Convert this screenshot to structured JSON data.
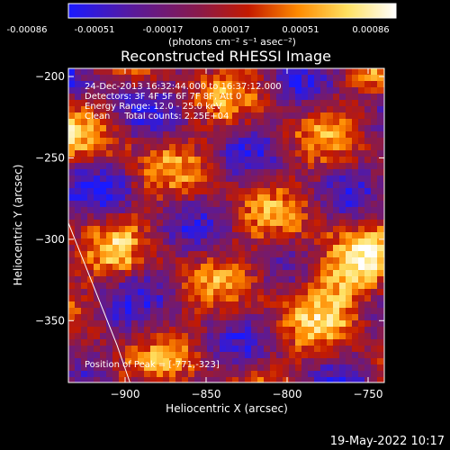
{
  "colorbar": {
    "ticks": [
      "-0.00086",
      "-0.00051",
      "-0.00017",
      "0.00017",
      "0.00051",
      "0.00086"
    ],
    "units_label": "(photons cm⁻² s⁻¹ asec⁻²)",
    "colors": [
      "#1a1aff",
      "#5a1a9a",
      "#8a1a4a",
      "#c41a00",
      "#ff8a00",
      "#ffe060",
      "#ffffff"
    ]
  },
  "chart_data": {
    "type": "heatmap",
    "title": "Reconstructed RHESSI Image",
    "xlabel": "Heliocentric X (arcsec)",
    "ylabel": "Heliocentric Y (arcsec)",
    "xlim": [
      -935,
      -740
    ],
    "ylim": [
      -388,
      -195
    ],
    "xticks": [
      -900,
      -850,
      -800,
      -750
    ],
    "yticks": [
      -200,
      -250,
      -300,
      -350
    ],
    "annotations": [
      "24-Dec-2013 16:32:44.000 to 16:37:12.000",
      "Detectors: 3F 4F 5F 6F 7F 8F, Att 0",
      "Energy Range: 12.0 - 25.0 keV",
      "Clean     Total counts: 2.25E+04"
    ],
    "peak_label": "Position of Peak = [-771,-323]",
    "peak_position": [
      -771,
      -323
    ],
    "limb_curve": [
      [
        -935,
        -290
      ],
      [
        -925,
        -315
      ],
      [
        -915,
        -340
      ],
      [
        -905,
        -365
      ],
      [
        -897,
        -388
      ]
    ]
  },
  "footer": {
    "timestamp": "19-May-2022 10:17"
  }
}
